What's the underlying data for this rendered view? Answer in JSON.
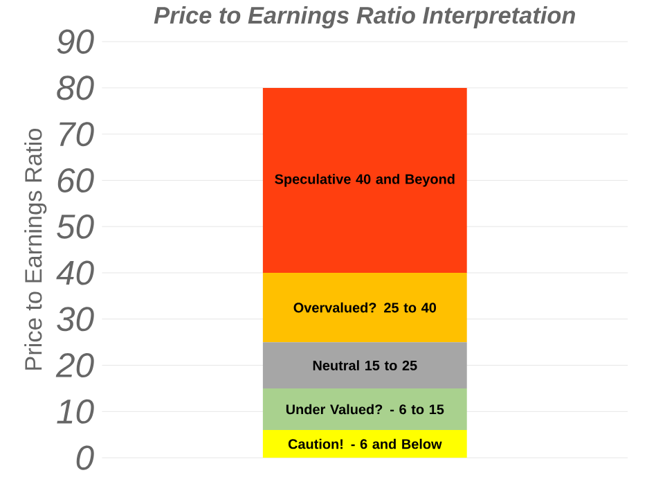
{
  "chart_data": {
    "type": "bar",
    "stacked": true,
    "title": "Price to Earnings Ratio Interpretation",
    "ylabel": "Price to Earnings Ratio",
    "categories": [
      null
    ],
    "series": [
      {
        "name": "Caution! - 6 and Below",
        "color": "#ffff00",
        "values": [
          6
        ]
      },
      {
        "name": "Under Valued? - 6 to 15",
        "color": "#a9d18e",
        "values": [
          9
        ]
      },
      {
        "name": "Neutral 15 to 25",
        "color": "#a6a6a6",
        "values": [
          10
        ]
      },
      {
        "name": "Overvalued? 25 to 40",
        "color": "#ffc000",
        "values": [
          15
        ]
      },
      {
        "name": "Speculative 40 and Beyond",
        "color": "#ff3f0f",
        "values": [
          40
        ]
      }
    ],
    "ylim": [
      0,
      90
    ],
    "yticks": [
      0,
      10,
      20,
      30,
      40,
      50,
      60,
      70,
      80,
      90
    ],
    "grid": "y",
    "legend": false,
    "tick_labels": "y"
  }
}
